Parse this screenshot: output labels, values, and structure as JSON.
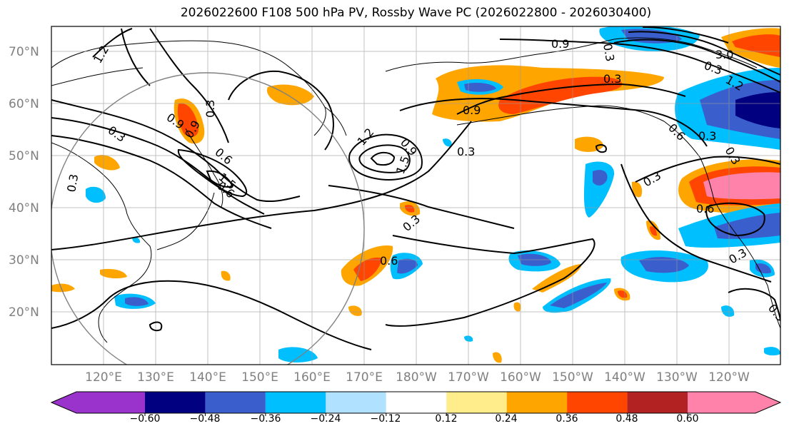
{
  "title": "2026022600 F108 500 hPa PV, Rossby Wave PC (2026022800 - 2026030400)",
  "lat_labels": [
    "70°N",
    "60°N",
    "50°N",
    "40°N",
    "30°N",
    "20°N"
  ],
  "lon_labels": [
    "120°E",
    "130°E",
    "140°E",
    "150°E",
    "160°E",
    "170°E",
    "180°W",
    "170°W",
    "160°W",
    "150°W",
    "140°W",
    "130°W",
    "120°W"
  ],
  "colorbar": {
    "colors": [
      "#9933cc",
      "#000080",
      "#3a5fcd",
      "#00bfff",
      "#b0e2ff",
      "#ffffff",
      "#ffec8b",
      "#ffa500",
      "#ff4500",
      "#b22222",
      "#ff82ab"
    ],
    "tick_labels": [
      "−0.60",
      "−0.48",
      "−0.36",
      "−0.24",
      "−0.12",
      "0.12",
      "0.24",
      "0.36",
      "0.48",
      "0.60"
    ]
  },
  "contour_labels": [
    "1.2",
    "0.9",
    "0.3",
    "0.6",
    "1.5",
    "0.3",
    "0.9",
    "1.2",
    "0.9",
    "1.5",
    "0.3",
    "0.3",
    "0.6",
    "0.9",
    "0.3",
    "0.3",
    "0.3",
    "0.6",
    "0.9",
    "3.0",
    "1.2",
    "0.3",
    "0.6",
    "0.3",
    "0.3",
    "0.3",
    "0.6",
    "0.3",
    "0.3"
  ]
}
